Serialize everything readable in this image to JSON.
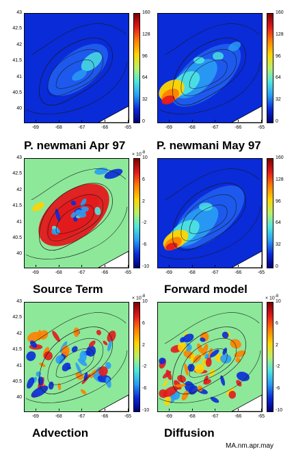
{
  "footer": "MA.nm.apr.may",
  "colors": {
    "water": "#0a2bd8",
    "land": "#ffffff",
    "contour": "#1a1a1a",
    "anomaly_neutral": "#8de89a"
  },
  "chart_data": [
    {
      "type": "heatmap",
      "title": "P. newmani   Apr 97",
      "x_ticks": [
        "-69",
        "-68",
        "-67",
        "-66",
        "-65"
      ],
      "y_ticks": [
        "43",
        "42.5",
        "42",
        "41.5",
        "41",
        "40.5",
        "40"
      ],
      "xlim": [
        -69.5,
        -65
      ],
      "ylim": [
        39.6,
        43
      ],
      "colorbar": {
        "ticks": [
          "160",
          "128",
          "96",
          "64",
          "32",
          "0"
        ],
        "range": [
          0,
          160
        ],
        "scale": ""
      },
      "colormap": "concentration",
      "grid": false
    },
    {
      "type": "heatmap",
      "title": "P. newmani   May 97",
      "x_ticks": [
        "-69",
        "-68",
        "-67",
        "-66",
        "-65"
      ],
      "y_ticks": [],
      "xlim": [
        -69.5,
        -65
      ],
      "ylim": [
        39.6,
        43
      ],
      "colorbar": {
        "ticks": [
          "160",
          "128",
          "96",
          "64",
          "32",
          "0"
        ],
        "range": [
          0,
          160
        ],
        "scale": ""
      },
      "colormap": "concentration",
      "grid": false
    },
    {
      "type": "heatmap",
      "title": "Source Term",
      "x_ticks": [
        "-69",
        "-68",
        "-67",
        "-66",
        "-65"
      ],
      "y_ticks": [
        "43",
        "42.5",
        "42",
        "41.5",
        "41",
        "40.5",
        "40"
      ],
      "xlim": [
        -69.5,
        -65
      ],
      "ylim": [
        39.6,
        43
      ],
      "colorbar": {
        "ticks": [
          "10",
          "6",
          "2",
          "-2",
          "-6",
          "-10"
        ],
        "range": [
          -10,
          10
        ],
        "scale": "-8"
      },
      "colormap": "anomaly",
      "grid": false
    },
    {
      "type": "heatmap",
      "title": "Forward model",
      "x_ticks": [
        "-69",
        "-68",
        "-67",
        "-66",
        "-65"
      ],
      "y_ticks": [],
      "xlim": [
        -69.5,
        -65
      ],
      "ylim": [
        39.6,
        43
      ],
      "colorbar": {
        "ticks": [
          "160",
          "128",
          "96",
          "64",
          "32",
          "0"
        ],
        "range": [
          0,
          160
        ],
        "scale": ""
      },
      "colormap": "concentration",
      "grid": false
    },
    {
      "type": "heatmap",
      "title": "Advection",
      "x_ticks": [
        "-69",
        "-68",
        "-67",
        "-66",
        "-65"
      ],
      "y_ticks": [
        "43",
        "42.5",
        "42",
        "41.5",
        "41",
        "40.5",
        "40"
      ],
      "xlim": [
        -69.5,
        -65
      ],
      "ylim": [
        39.6,
        43
      ],
      "colorbar": {
        "ticks": [
          "10",
          "6",
          "2",
          "-2",
          "-6",
          "-10"
        ],
        "range": [
          -10,
          10
        ],
        "scale": "-8"
      },
      "colormap": "anomaly",
      "grid": false
    },
    {
      "type": "heatmap",
      "title": "Diffusion",
      "x_ticks": [
        "-69",
        "-68",
        "-67",
        "-66",
        "-65"
      ],
      "y_ticks": [],
      "xlim": [
        -69.5,
        -65
      ],
      "ylim": [
        39.6,
        43
      ],
      "colorbar": {
        "ticks": [
          "10",
          "6",
          "2",
          "-2",
          "-6",
          "-10"
        ],
        "range": [
          -10,
          10
        ],
        "scale": "-8"
      },
      "colormap": "anomaly",
      "grid": false
    }
  ]
}
